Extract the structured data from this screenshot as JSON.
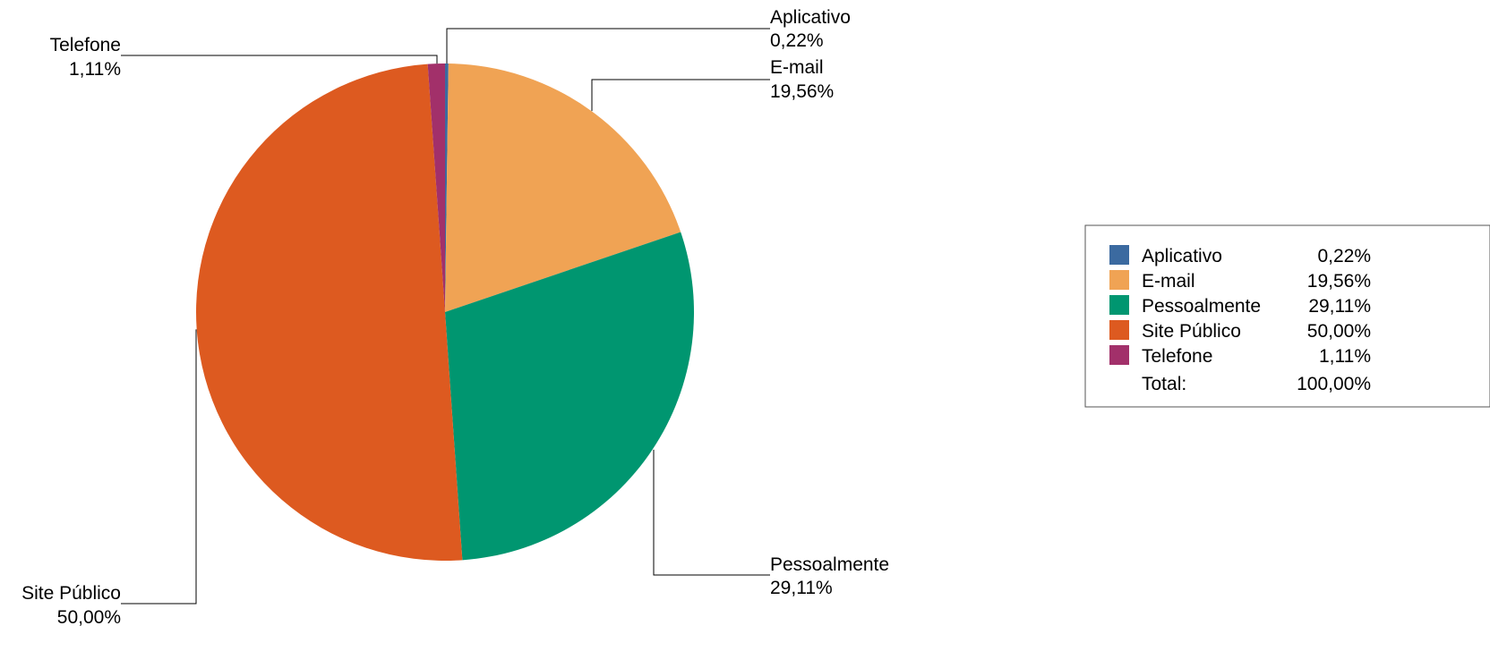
{
  "chart_data": {
    "type": "pie",
    "title": "",
    "categories": [
      "Aplicativo",
      "E-mail",
      "Pessoalmente",
      "Site Público",
      "Telefone"
    ],
    "values": [
      0.22,
      19.56,
      29.11,
      50.0,
      1.11
    ],
    "value_labels": [
      "0,22%",
      "19,56%",
      "29,11%",
      "50,00%",
      "1,11%"
    ],
    "colors": [
      "#3b6aa0",
      "#f0a354",
      "#009670",
      "#dd5a20",
      "#a2306a"
    ],
    "start_angle_deg": 0,
    "direction": "clockwise",
    "legend_position": "right",
    "total_label": "Total:",
    "total_value": "100,00%"
  }
}
